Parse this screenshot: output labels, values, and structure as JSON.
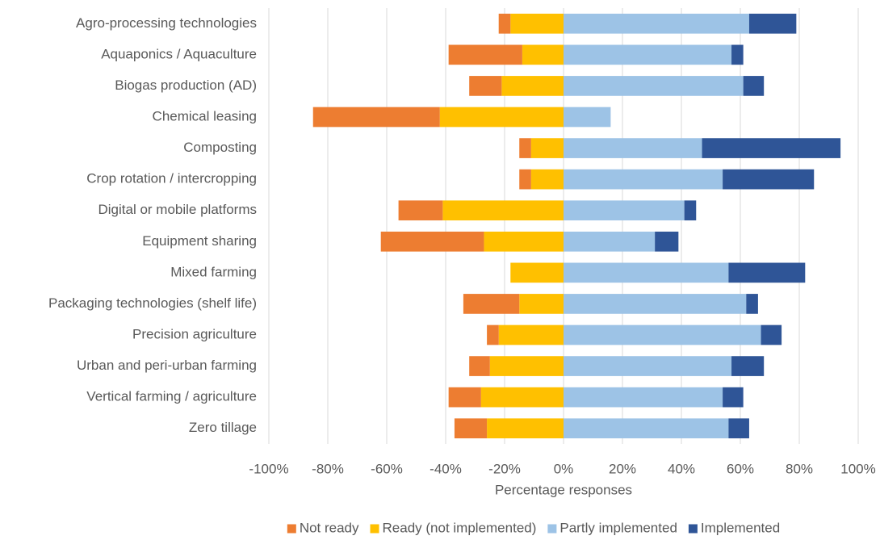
{
  "chart_data": {
    "type": "diverging_stacked_bar",
    "x_label": "Percentage responses",
    "categories": [
      "Agro-processing technologies",
      "Aquaponics / Aquaculture",
      "Biogas production (AD)",
      "Chemical leasing",
      "Composting",
      "Crop rotation / intercropping",
      "Digital or mobile platforms",
      "Equipment sharing",
      "Mixed farming",
      "Packaging technologies (shelf life)",
      "Precision agriculture",
      "Urban and peri-urban farming",
      "Vertical farming / agriculture",
      "Zero tillage"
    ],
    "series": [
      {
        "name": "Not ready",
        "color": "#ed7d31",
        "values": [
          -4,
          -25,
          -11,
          -43,
          -4,
          -4,
          -15,
          -35,
          0,
          -19,
          -4,
          -7,
          -11,
          -11
        ]
      },
      {
        "name": "Ready (not implemented)",
        "color": "#ffc000",
        "values": [
          -18,
          -14,
          -21,
          -42,
          -11,
          -11,
          -41,
          -27,
          -18,
          -15,
          -22,
          -25,
          -28,
          -26
        ]
      },
      {
        "name": "Partly implemented",
        "color": "#9dc3e6",
        "values": [
          63,
          57,
          61,
          16,
          47,
          54,
          41,
          31,
          56,
          62,
          67,
          57,
          54,
          56
        ]
      },
      {
        "name": "Implemented",
        "color": "#2f5597",
        "values": [
          16,
          4,
          7,
          0,
          47,
          31,
          4,
          8,
          26,
          4,
          7,
          11,
          7,
          7
        ]
      }
    ],
    "xlim": [
      -100,
      100
    ],
    "xticks": [
      {
        "value": -100,
        "label": "-100%"
      },
      {
        "value": -80,
        "label": "-80%"
      },
      {
        "value": -60,
        "label": "-60%"
      },
      {
        "value": -40,
        "label": "-40%"
      },
      {
        "value": -20,
        "label": "-20%"
      },
      {
        "value": 0,
        "label": "0%"
      },
      {
        "value": 20,
        "label": "20%"
      },
      {
        "value": 40,
        "label": "40%"
      },
      {
        "value": 60,
        "label": "60%"
      },
      {
        "value": 80,
        "label": "80%"
      },
      {
        "value": 100,
        "label": "100%"
      }
    ],
    "grid": true,
    "legend": "bottom"
  }
}
